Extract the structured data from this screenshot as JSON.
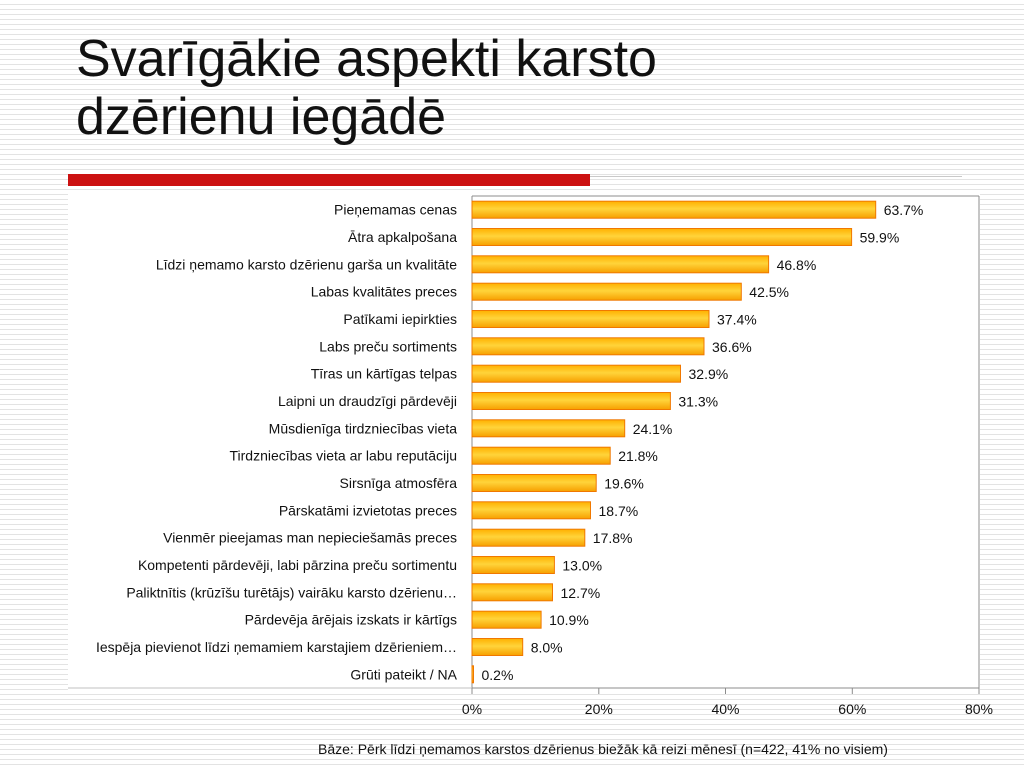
{
  "slide": {
    "title": "Svarīgākie aspekti karsto\ndzērienu iegādē",
    "accent_color": "#cc1111",
    "footnote": "Bāze: Pērk līdzi ņemamos karstos dzērienus biežāk kā reizi mēnesī  (n=422, 41% no visiem)"
  },
  "chart_data": {
    "type": "bar",
    "orientation": "horizontal",
    "categories": [
      "Pieņemamas cenas",
      "Ātra apkalpošana",
      "Līdzi ņemamo karsto dzērienu garša un kvalitāte",
      "Labas kvalitātes preces",
      "Patīkami iepirkties",
      "Labs preču sortiments",
      "Tīras un kārtīgas telpas",
      "Laipni un draudzīgi pārdevēji",
      "Mūsdienīga tirdzniecības vieta",
      "Tirdzniecības vieta ar labu reputāciju",
      "Sirsnīga atmosfēra",
      "Pārskatāmi izvietotas preces",
      "Vienmēr pieejamas man nepieciešamās preces",
      "Kompetenti pārdevēji, labi pārzina preču sortimentu",
      "Paliktnītis (krūzīšu turētājs) vairāku karsto dzērienu…",
      "Pārdevēja ārējais izskats ir kārtīgs",
      "Iespēja pievienot līdzi ņemamiem karstajiem dzērieniem…",
      "Grūti pateikt  / NA"
    ],
    "values": [
      63.7,
      59.9,
      46.8,
      42.5,
      37.4,
      36.6,
      32.9,
      31.3,
      24.1,
      21.8,
      19.6,
      18.7,
      17.8,
      13.0,
      12.7,
      10.9,
      8.0,
      0.2
    ],
    "value_labels": [
      "63.7%",
      "59.9%",
      "46.8%",
      "42.5%",
      "37.4%",
      "36.6%",
      "32.9%",
      "31.3%",
      "24.1%",
      "21.8%",
      "19.6%",
      "18.7%",
      "17.8%",
      "13.0%",
      "12.7%",
      "10.9%",
      "8.0%",
      "0.2%"
    ],
    "xlim": [
      0,
      80
    ],
    "x_ticks": [
      0,
      20,
      40,
      60,
      80
    ],
    "x_tick_labels": [
      "0%",
      "20%",
      "40%",
      "60%",
      "80%"
    ],
    "grid": false,
    "legend": "none",
    "bar_color": "#ffc000",
    "bar_edge_color": "#f07800"
  }
}
